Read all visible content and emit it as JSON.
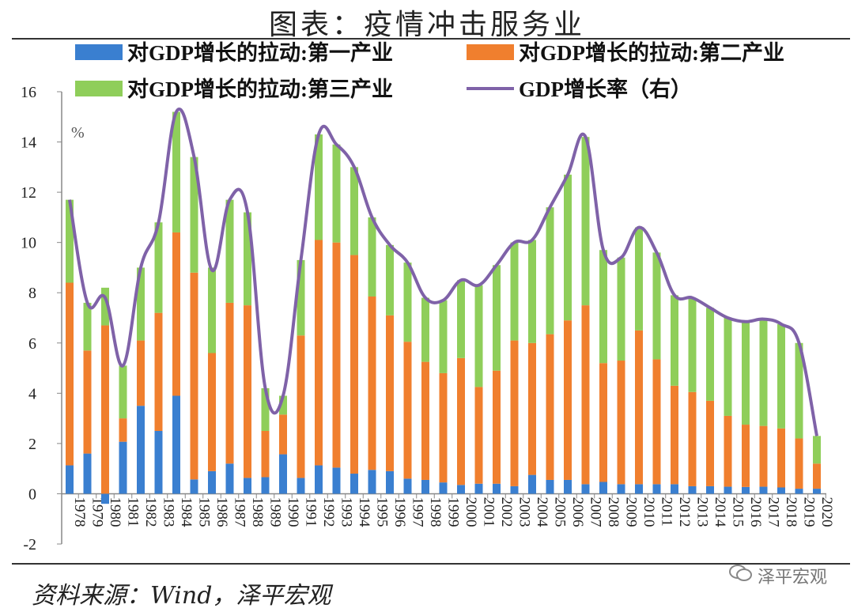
{
  "title": "图表：疫情冲击服务业",
  "source": "资料来源：Wind，泽平宏观",
  "watermark": {
    "text": "泽平宏观",
    "icon": "wechat-icon"
  },
  "chart_data": {
    "type": "bar",
    "stacked": true,
    "unit_label": "%",
    "ylim": [
      -2,
      16
    ],
    "yticks": [
      -2,
      0,
      2,
      4,
      6,
      8,
      10,
      12,
      14,
      16
    ],
    "grid": false,
    "legend_position": "top",
    "categories": [
      "1978",
      "1979",
      "1980",
      "1981",
      "1982",
      "1983",
      "1984",
      "1985",
      "1986",
      "1987",
      "1988",
      "1989",
      "1990",
      "1991",
      "1992",
      "1993",
      "1994",
      "1995",
      "1996",
      "1997",
      "1998",
      "1999",
      "2000",
      "2001",
      "2002",
      "2003",
      "2004",
      "2005",
      "2006",
      "2007",
      "2008",
      "2009",
      "2010",
      "2011",
      "2012",
      "2013",
      "2014",
      "2015",
      "2016",
      "2017",
      "2018",
      "2019",
      "2020"
    ],
    "series": [
      {
        "name": "对GDP增长的拉动:第一产业",
        "type": "bar",
        "color": "#3a7fd0",
        "values": [
          1.13,
          1.6,
          -0.4,
          2.07,
          3.5,
          2.5,
          3.9,
          0.57,
          0.9,
          1.2,
          0.63,
          0.66,
          1.57,
          0.63,
          1.13,
          1.04,
          0.8,
          0.95,
          0.9,
          0.6,
          0.55,
          0.45,
          0.35,
          0.4,
          0.4,
          0.3,
          0.75,
          0.55,
          0.55,
          0.38,
          0.47,
          0.38,
          0.38,
          0.38,
          0.38,
          0.3,
          0.3,
          0.28,
          0.27,
          0.28,
          0.25,
          0.2,
          0.2
        ]
      },
      {
        "name": "对GDP增长的拉动:第二产业",
        "type": "bar",
        "color": "#f07f2e",
        "values": [
          7.27,
          4.1,
          6.7,
          0.93,
          2.6,
          4.7,
          6.5,
          8.23,
          4.7,
          6.4,
          6.87,
          1.84,
          1.58,
          5.67,
          8.97,
          8.96,
          8.7,
          6.9,
          6.2,
          5.45,
          4.7,
          4.35,
          5.05,
          3.85,
          4.5,
          5.8,
          5.25,
          5.8,
          6.35,
          7.12,
          4.73,
          4.92,
          6.12,
          4.97,
          3.92,
          3.75,
          3.4,
          2.82,
          2.48,
          2.42,
          2.35,
          2.0,
          1.0
        ]
      },
      {
        "name": "对GDP增长的拉动:第三产业",
        "type": "bar",
        "color": "#8fce5a",
        "values": [
          3.3,
          1.9,
          1.5,
          2.1,
          2.9,
          3.6,
          4.8,
          4.6,
          3.4,
          4.1,
          3.7,
          1.7,
          0.75,
          3.0,
          4.2,
          3.9,
          3.5,
          3.15,
          2.8,
          3.15,
          2.55,
          2.9,
          3.1,
          4.05,
          4.2,
          3.9,
          4.1,
          5.05,
          5.8,
          6.7,
          4.5,
          4.1,
          4.1,
          4.25,
          3.6,
          3.75,
          3.7,
          3.9,
          4.1,
          4.25,
          4.15,
          3.8,
          1.1
        ]
      },
      {
        "name": "GDP增长率（右）",
        "type": "line",
        "smooth": true,
        "color": "#7f62a8",
        "values": [
          11.7,
          7.6,
          7.8,
          5.1,
          9.0,
          10.8,
          15.2,
          13.4,
          8.9,
          11.7,
          11.2,
          4.2,
          3.9,
          9.3,
          14.3,
          13.9,
          13.0,
          11.0,
          9.9,
          9.2,
          7.8,
          7.7,
          8.5,
          8.3,
          9.1,
          10.0,
          10.1,
          11.4,
          12.7,
          14.2,
          9.7,
          9.4,
          10.6,
          9.6,
          7.9,
          7.8,
          7.4,
          7.0,
          6.85,
          6.95,
          6.75,
          6.0,
          2.3
        ]
      }
    ]
  }
}
